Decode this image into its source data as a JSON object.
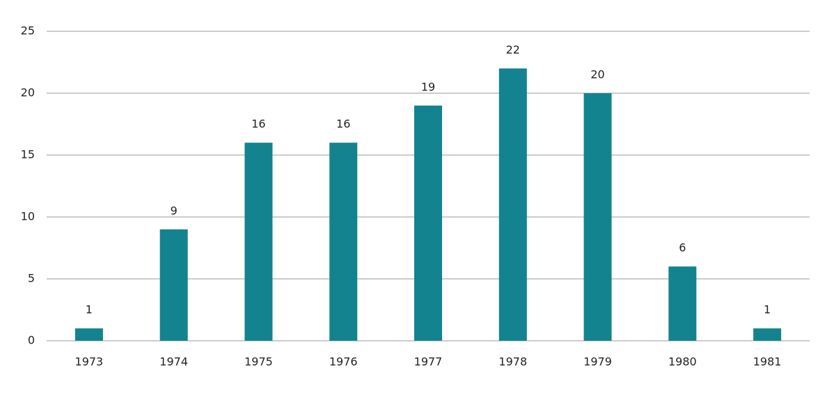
{
  "chart_data": {
    "type": "bar",
    "categories": [
      "1973",
      "1974",
      "1975",
      "1976",
      "1977",
      "1978",
      "1979",
      "1980",
      "1981"
    ],
    "values": [
      1,
      9,
      16,
      16,
      19,
      22,
      20,
      6,
      1
    ],
    "color": "#13838f",
    "ylim": [
      0,
      25
    ],
    "yticks": [
      0,
      5,
      10,
      15,
      20,
      25
    ],
    "grid": true,
    "data_labels": true
  }
}
